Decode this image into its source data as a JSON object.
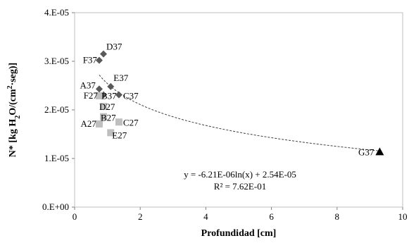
{
  "chart_data": {
    "type": "scatter",
    "xlabel": "Profundidad [cm]",
    "ylabel_parts": [
      "N* [kg H",
      "2",
      "O/(cm",
      "2",
      "·seg)]"
    ],
    "xlim": [
      0,
      10
    ],
    "ylim": [
      0,
      4e-05
    ],
    "x_ticks": [
      {
        "value": 0,
        "label": "0"
      },
      {
        "value": 2,
        "label": "2"
      },
      {
        "value": 4,
        "label": "4"
      },
      {
        "value": 6,
        "label": "6"
      },
      {
        "value": 8,
        "label": "8"
      },
      {
        "value": 10,
        "label": "10"
      }
    ],
    "y_ticks": [
      {
        "value": 0,
        "label": "0.E+00"
      },
      {
        "value": 1e-05,
        "label": "1.E-05"
      },
      {
        "value": 2e-05,
        "label": "2.E-05"
      },
      {
        "value": 3e-05,
        "label": "3.E-05"
      },
      {
        "value": 4e-05,
        "label": "4.E-05"
      }
    ],
    "grid": false,
    "series": [
      {
        "marker": "diamond",
        "color": "#595959",
        "points": [
          {
            "label": "D37",
            "x": 0.88,
            "y": 3.15e-05
          },
          {
            "label": "F37",
            "x": 0.75,
            "y": 3.02e-05
          },
          {
            "label": "A37",
            "x": 0.75,
            "y": 2.43e-05
          },
          {
            "label": "E37",
            "x": 1.1,
            "y": 2.48e-05
          },
          {
            "label": "B37",
            "x": 0.88,
            "y": 2.31e-05
          },
          {
            "label": "C37",
            "x": 1.35,
            "y": 2.31e-05
          }
        ]
      },
      {
        "marker": "square",
        "color": "#bfbfbf",
        "points": [
          {
            "label": "F27",
            "x": 0.75,
            "y": 2.29e-05
          },
          {
            "label": "D27",
            "x": 0.88,
            "y": 2.07e-05
          },
          {
            "label": "B27",
            "x": 0.88,
            "y": 1.86e-05
          },
          {
            "label": "A27",
            "x": 0.75,
            "y": 1.71e-05
          },
          {
            "label": "C27",
            "x": 1.35,
            "y": 1.75e-05
          },
          {
            "label": "E27",
            "x": 1.1,
            "y": 1.53e-05
          }
        ]
      },
      {
        "marker": "triangle",
        "color": "#000000",
        "points": [
          {
            "label": "G37",
            "x": 9.3,
            "y": 1.14e-05
          }
        ]
      }
    ],
    "trendline": {
      "type": "logarithmic",
      "a": -6.21e-06,
      "b": 2.54e-05,
      "x_range": [
        0.75,
        9.3
      ],
      "equation": "y = -6.21E-06ln(x) + 2.54E-05",
      "r2": "R² = 7.62E-01"
    }
  }
}
